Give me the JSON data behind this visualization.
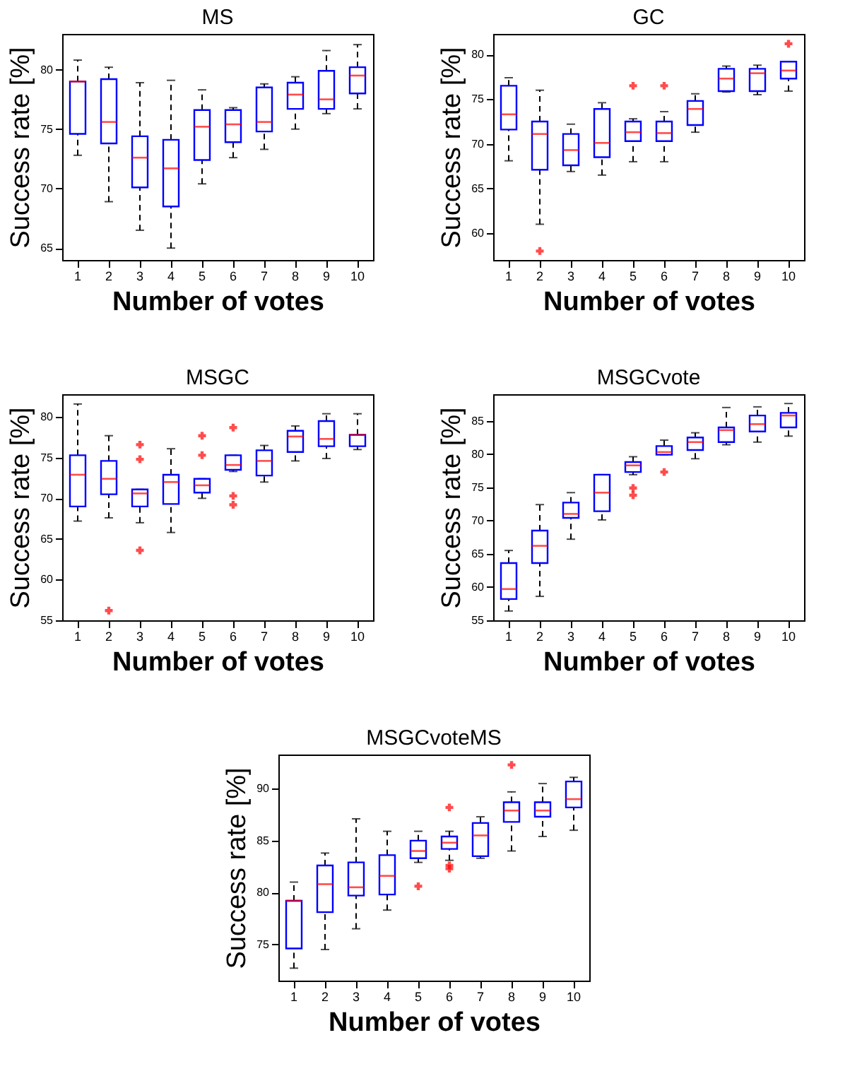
{
  "chart_data": [
    {
      "type": "box",
      "title": "MS",
      "xlabel": "Number of votes",
      "ylabel": "Success rate [%]",
      "color": "#0000ff",
      "marker": "cross",
      "categories": [
        "1",
        "2",
        "3",
        "4",
        "5",
        "6",
        "7",
        "8",
        "9",
        "10"
      ],
      "ylim": [
        64,
        83
      ],
      "yticks": [
        65,
        70,
        75,
        80
      ],
      "boxes": [
        {
          "low": 72.8,
          "q1": 74.6,
          "median": 79.0,
          "q3": 79.0,
          "high": 80.8
        },
        {
          "low": 68.9,
          "q1": 73.8,
          "median": 75.6,
          "q3": 79.2,
          "high": 80.2
        },
        {
          "low": 66.5,
          "q1": 70.1,
          "median": 72.6,
          "q3": 74.4,
          "high": 78.9
        },
        {
          "low": 65.0,
          "q1": 68.5,
          "median": 71.7,
          "q3": 74.1,
          "high": 79.1
        },
        {
          "low": 70.4,
          "q1": 72.4,
          "median": 75.2,
          "q3": 76.6,
          "high": 78.3
        },
        {
          "low": 72.6,
          "q1": 73.9,
          "median": 75.4,
          "q3": 76.6,
          "high": 76.8
        },
        {
          "low": 73.3,
          "q1": 74.8,
          "median": 75.6,
          "q3": 78.5,
          "high": 78.8
        },
        {
          "low": 75.0,
          "q1": 76.7,
          "median": 77.9,
          "q3": 78.9,
          "high": 79.4
        },
        {
          "low": 76.3,
          "q1": 76.7,
          "median": 77.5,
          "q3": 79.9,
          "high": 81.6
        },
        {
          "low": 76.7,
          "q1": 78.0,
          "median": 79.5,
          "q3": 80.2,
          "high": 82.1
        }
      ]
    },
    {
      "type": "box",
      "title": "GC",
      "xlabel": "Number of votes",
      "ylabel": "Success rate [%]",
      "color": "#0000ff",
      "marker": "cross",
      "categories": [
        "1",
        "2",
        "3",
        "4",
        "5",
        "6",
        "7",
        "8",
        "9",
        "10"
      ],
      "ylim": [
        57,
        82.3
      ],
      "yticks": [
        60,
        65,
        70,
        75,
        80
      ],
      "boxes": [
        {
          "low": 68.1,
          "q1": 71.6,
          "median": 73.3,
          "q3": 76.5,
          "high": 77.4
        },
        {
          "low": 61.0,
          "q1": 67.1,
          "median": 71.1,
          "q3": 72.5,
          "high": 76.0,
          "outliers": [
            58.0
          ]
        },
        {
          "low": 66.9,
          "q1": 67.6,
          "median": 69.3,
          "q3": 71.1,
          "high": 72.2
        },
        {
          "low": 66.5,
          "q1": 68.5,
          "median": 70.1,
          "q3": 73.9,
          "high": 74.6
        },
        {
          "low": 68.0,
          "q1": 70.3,
          "median": 71.3,
          "q3": 72.5,
          "high": 72.8,
          "outliers": [
            76.5
          ]
        },
        {
          "low": 68.0,
          "q1": 70.3,
          "median": 71.2,
          "q3": 72.5,
          "high": 73.6,
          "outliers": [
            76.5
          ]
        },
        {
          "low": 71.3,
          "q1": 72.1,
          "median": 73.9,
          "q3": 74.8,
          "high": 75.6
        },
        {
          "low": 75.8,
          "q1": 75.9,
          "median": 77.3,
          "q3": 78.4,
          "high": 78.7
        },
        {
          "low": 75.5,
          "q1": 75.9,
          "median": 77.9,
          "q3": 78.4,
          "high": 78.8
        },
        {
          "low": 75.9,
          "q1": 77.3,
          "median": 78.2,
          "q3": 79.2,
          "high": 79.2,
          "outliers": [
            81.2
          ]
        }
      ]
    },
    {
      "type": "box",
      "title": "MSGC",
      "xlabel": "Number of votes",
      "ylabel": "Success rate [%]",
      "color": "#0000ff",
      "marker": "cross",
      "categories": [
        "1",
        "2",
        "3",
        "4",
        "5",
        "6",
        "7",
        "8",
        "9",
        "10"
      ],
      "ylim": [
        55,
        82.8
      ],
      "yticks": [
        55,
        60,
        65,
        70,
        75,
        80
      ],
      "boxes": [
        {
          "low": 67.2,
          "q1": 69.0,
          "median": 72.9,
          "q3": 75.3,
          "high": 81.6
        },
        {
          "low": 67.6,
          "q1": 70.5,
          "median": 72.4,
          "q3": 74.6,
          "high": 77.7,
          "outliers": [
            56.2
          ]
        },
        {
          "low": 67.0,
          "q1": 69.0,
          "median": 70.6,
          "q3": 71.1,
          "high": 71.1,
          "outliers": [
            76.6,
            74.8,
            63.6
          ]
        },
        {
          "low": 65.8,
          "q1": 69.3,
          "median": 72.0,
          "q3": 72.9,
          "high": 76.1
        },
        {
          "low": 70.0,
          "q1": 70.7,
          "median": 71.6,
          "q3": 72.4,
          "high": 72.4,
          "outliers": [
            77.7,
            75.3
          ]
        },
        {
          "low": 73.3,
          "q1": 73.5,
          "median": 74.1,
          "q3": 75.3,
          "high": 75.3,
          "outliers": [
            78.7,
            70.3,
            69.2
          ]
        },
        {
          "low": 72.0,
          "q1": 72.8,
          "median": 74.6,
          "q3": 75.9,
          "high": 76.5
        },
        {
          "low": 74.6,
          "q1": 75.7,
          "median": 77.6,
          "q3": 78.3,
          "high": 78.9
        },
        {
          "low": 74.9,
          "q1": 76.4,
          "median": 77.3,
          "q3": 79.5,
          "high": 80.4
        },
        {
          "low": 76.0,
          "q1": 76.4,
          "median": 77.8,
          "q3": 77.8,
          "high": 80.4
        }
      ]
    },
    {
      "type": "box",
      "title": "MSGCvote",
      "xlabel": "Number of votes",
      "ylabel": "Success rate [%]",
      "color": "#0000ff",
      "marker": "cross",
      "categories": [
        "1",
        "2",
        "3",
        "4",
        "5",
        "6",
        "7",
        "8",
        "9",
        "10"
      ],
      "ylim": [
        55,
        89
      ],
      "yticks": [
        55,
        60,
        65,
        70,
        75,
        80,
        85
      ],
      "boxes": [
        {
          "low": 56.4,
          "q1": 58.2,
          "median": 59.7,
          "q3": 63.6,
          "high": 65.5
        },
        {
          "low": 58.6,
          "q1": 63.6,
          "median": 66.2,
          "q3": 68.5,
          "high": 72.4
        },
        {
          "low": 67.2,
          "q1": 70.4,
          "median": 71.0,
          "q3": 72.7,
          "high": 74.2
        },
        {
          "low": 70.1,
          "q1": 71.4,
          "median": 74.2,
          "q3": 76.9,
          "high": 76.9
        },
        {
          "low": 76.9,
          "q1": 77.3,
          "median": 78.3,
          "q3": 78.8,
          "high": 79.6,
          "outliers": [
            74.9,
            73.8
          ]
        },
        {
          "low": 79.9,
          "q1": 79.9,
          "median": 80.3,
          "q3": 81.2,
          "high": 82.1,
          "outliers": [
            77.3
          ]
        },
        {
          "low": 79.3,
          "q1": 80.6,
          "median": 81.8,
          "q3": 82.5,
          "high": 83.2
        },
        {
          "low": 81.4,
          "q1": 81.8,
          "median": 83.6,
          "q3": 84.0,
          "high": 87.0
        },
        {
          "low": 81.8,
          "q1": 83.4,
          "median": 84.5,
          "q3": 85.8,
          "high": 87.1
        },
        {
          "low": 82.7,
          "q1": 84.0,
          "median": 85.8,
          "q3": 86.2,
          "high": 87.6
        }
      ]
    },
    {
      "type": "box",
      "title": "MSGCvoteMS",
      "xlabel": "Number of votes",
      "ylabel": "Success rate [%]",
      "color": "#0000ff",
      "marker": "cross",
      "categories": [
        "1",
        "2",
        "3",
        "4",
        "5",
        "6",
        "7",
        "8",
        "9",
        "10"
      ],
      "ylim": [
        71.5,
        93.3
      ],
      "yticks": [
        75,
        80,
        85,
        90
      ],
      "boxes": [
        {
          "low": 72.7,
          "q1": 74.6,
          "median": 79.2,
          "q3": 79.2,
          "high": 81.0
        },
        {
          "low": 74.5,
          "q1": 78.1,
          "median": 80.8,
          "q3": 82.6,
          "high": 83.8
        },
        {
          "low": 76.5,
          "q1": 79.7,
          "median": 80.5,
          "q3": 82.9,
          "high": 87.1
        },
        {
          "low": 78.3,
          "q1": 79.8,
          "median": 81.6,
          "q3": 83.6,
          "high": 85.9
        },
        {
          "low": 82.9,
          "q1": 83.3,
          "median": 84.0,
          "q3": 85.0,
          "high": 85.9,
          "outliers": [
            80.6
          ]
        },
        {
          "low": 83.1,
          "q1": 84.2,
          "median": 84.8,
          "q3": 85.4,
          "high": 85.9,
          "outliers": [
            88.2,
            82.6,
            82.3
          ]
        },
        {
          "low": 83.3,
          "q1": 83.5,
          "median": 85.5,
          "q3": 86.7,
          "high": 87.3
        },
        {
          "low": 84.0,
          "q1": 86.8,
          "median": 87.9,
          "q3": 88.7,
          "high": 89.7,
          "outliers": [
            92.3
          ]
        },
        {
          "low": 85.4,
          "q1": 87.3,
          "median": 87.9,
          "q3": 88.7,
          "high": 90.5
        },
        {
          "low": 86.0,
          "q1": 88.2,
          "median": 89.0,
          "q3": 90.7,
          "high": 91.1
        }
      ]
    }
  ]
}
